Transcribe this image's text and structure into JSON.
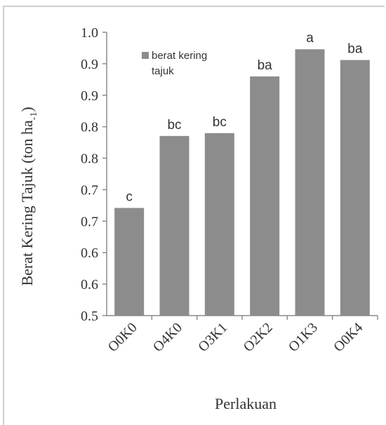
{
  "chart_data": {
    "type": "bar",
    "categories": [
      "O0K0",
      "O4K0",
      "O3K1",
      "O2K2",
      "O1K3",
      "O0K4"
    ],
    "series": [
      {
        "name": "berat kering tajuk",
        "values": [
          0.69,
          0.817,
          0.822,
          0.922,
          0.97,
          0.951
        ],
        "color": "#8c8c8c"
      }
    ],
    "data_labels": [
      "c",
      "bc",
      "bc",
      "ba",
      "a",
      "ba"
    ],
    "ylabel": "Berat Kering Tajuk (ton ha",
    "ylabel_sub": "-1",
    "ylabel_close": ")",
    "xlabel": "Perlakuan",
    "yticks": [
      "1.0",
      "0.9",
      "0.9",
      "0.8",
      "0.8",
      "0.7",
      "0.7",
      "0.6",
      "0.6",
      "0.5"
    ],
    "ylim": [
      0.5,
      1.0
    ],
    "legend_lines": [
      "berat kering",
      "tajuk"
    ],
    "legend_position": "top-left",
    "grid": false
  }
}
